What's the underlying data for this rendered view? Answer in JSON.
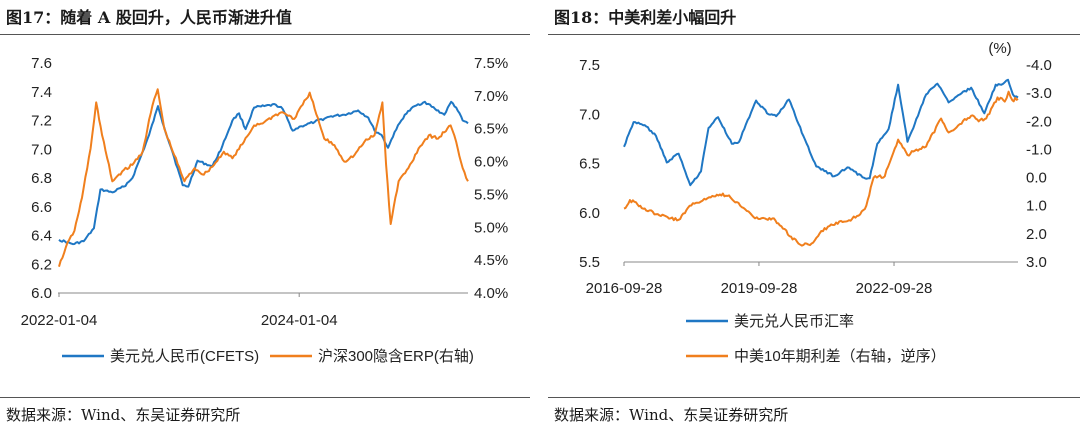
{
  "panels": [
    {
      "title": "图17：随着 A 股回升，人民币渐进升值",
      "source": "数据来源：Wind、东吴证券研究所"
    },
    {
      "title": "图18：中美利差小幅回升",
      "source": "数据来源：Wind、东吴证券研究所"
    }
  ],
  "chart_data": [
    {
      "type": "line",
      "title": "",
      "xlabel": "",
      "ylabel": "",
      "x_ticks": [
        "2022-01-04",
        "2024-01-04"
      ],
      "y_left_ticks": [
        "6.0",
        "6.2",
        "6.4",
        "6.6",
        "6.8",
        "7.0",
        "7.2",
        "7.4",
        "7.6"
      ],
      "y_right_ticks": [
        "4.0%",
        "4.5%",
        "5.0%",
        "5.5%",
        "6.0%",
        "6.5%",
        "7.0%",
        "7.5%"
      ],
      "y_left_range": [
        6.0,
        7.6
      ],
      "y_right_range": [
        4.0,
        7.5
      ],
      "x_range": [
        "2022-01-01",
        "2025-05-31"
      ],
      "legend_position": "bottom",
      "series": [
        {
          "name": "美元兑人民币(CFETS)",
          "axis": "left",
          "color": "#1f77c4",
          "points": [
            [
              "2022-01-04",
              6.37
            ],
            [
              "2022-02-15",
              6.34
            ],
            [
              "2022-03-20",
              6.36
            ],
            [
              "2022-04-20",
              6.45
            ],
            [
              "2022-05-10",
              6.72
            ],
            [
              "2022-06-15",
              6.7
            ],
            [
              "2022-07-20",
              6.74
            ],
            [
              "2022-08-15",
              6.8
            ],
            [
              "2022-09-10",
              6.95
            ],
            [
              "2022-10-05",
              7.1
            ],
            [
              "2022-11-01",
              7.3
            ],
            [
              "2022-11-20",
              7.15
            ],
            [
              "2022-12-15",
              6.98
            ],
            [
              "2023-01-15",
              6.75
            ],
            [
              "2023-02-01",
              6.74
            ],
            [
              "2023-03-01",
              6.92
            ],
            [
              "2023-04-15",
              6.88
            ],
            [
              "2023-05-15",
              7.02
            ],
            [
              "2023-06-15",
              7.2
            ],
            [
              "2023-07-05",
              7.25
            ],
            [
              "2023-07-25",
              7.14
            ],
            [
              "2023-08-20",
              7.29
            ],
            [
              "2023-09-20",
              7.3
            ],
            [
              "2023-10-25",
              7.31
            ],
            [
              "2023-11-15",
              7.28
            ],
            [
              "2023-12-15",
              7.13
            ],
            [
              "2024-01-10",
              7.16
            ],
            [
              "2024-02-20",
              7.19
            ],
            [
              "2024-04-10",
              7.23
            ],
            [
              "2024-05-20",
              7.24
            ],
            [
              "2024-07-01",
              7.27
            ],
            [
              "2024-08-01",
              7.22
            ],
            [
              "2024-08-20",
              7.13
            ],
            [
              "2024-09-10",
              7.1
            ],
            [
              "2024-09-30",
              7.01
            ],
            [
              "2024-10-20",
              7.12
            ],
            [
              "2024-11-20",
              7.24
            ],
            [
              "2024-12-20",
              7.3
            ],
            [
              "2025-01-20",
              7.33
            ],
            [
              "2025-02-20",
              7.28
            ],
            [
              "2025-03-20",
              7.24
            ],
            [
              "2025-04-10",
              7.33
            ],
            [
              "2025-04-25",
              7.29
            ],
            [
              "2025-05-15",
              7.2
            ],
            [
              "2025-05-31",
              7.18
            ]
          ]
        },
        {
          "name": "沪深300隐含ERP(右轴)",
          "axis": "right",
          "color": "#f07f1d",
          "points": [
            [
              "2022-01-04",
              4.4
            ],
            [
              "2022-01-25",
              4.7
            ],
            [
              "2022-02-20",
              4.95
            ],
            [
              "2022-03-15",
              5.45
            ],
            [
              "2022-04-10",
              6.2
            ],
            [
              "2022-04-27",
              6.9
            ],
            [
              "2022-05-15",
              6.4
            ],
            [
              "2022-06-15",
              5.7
            ],
            [
              "2022-07-15",
              5.85
            ],
            [
              "2022-08-15",
              5.95
            ],
            [
              "2022-09-15",
              6.15
            ],
            [
              "2022-10-15",
              6.85
            ],
            [
              "2022-10-31",
              7.1
            ],
            [
              "2022-11-20",
              6.5
            ],
            [
              "2022-12-20",
              6.1
            ],
            [
              "2023-01-20",
              5.7
            ],
            [
              "2023-02-20",
              5.9
            ],
            [
              "2023-03-20",
              5.8
            ],
            [
              "2023-04-20",
              5.95
            ],
            [
              "2023-05-20",
              6.15
            ],
            [
              "2023-06-15",
              6.05
            ],
            [
              "2023-07-20",
              6.3
            ],
            [
              "2023-08-20",
              6.55
            ],
            [
              "2023-09-20",
              6.6
            ],
            [
              "2023-10-20",
              6.7
            ],
            [
              "2023-11-15",
              6.75
            ],
            [
              "2023-12-20",
              6.65
            ],
            [
              "2024-01-25",
              6.95
            ],
            [
              "2024-02-05",
              7.05
            ],
            [
              "2024-02-20",
              6.8
            ],
            [
              "2024-03-20",
              6.35
            ],
            [
              "2024-04-20",
              6.25
            ],
            [
              "2024-05-20",
              6.0
            ],
            [
              "2024-06-20",
              6.1
            ],
            [
              "2024-07-20",
              6.3
            ],
            [
              "2024-08-20",
              6.4
            ],
            [
              "2024-09-13",
              6.9
            ],
            [
              "2024-09-24",
              5.95
            ],
            [
              "2024-10-08",
              5.05
            ],
            [
              "2024-11-01",
              5.7
            ],
            [
              "2024-12-01",
              5.9
            ],
            [
              "2025-01-01",
              6.2
            ],
            [
              "2025-02-01",
              6.4
            ],
            [
              "2025-03-01",
              6.35
            ],
            [
              "2025-04-08",
              6.55
            ],
            [
              "2025-04-25",
              6.3
            ],
            [
              "2025-05-15",
              5.9
            ],
            [
              "2025-05-31",
              5.7
            ]
          ]
        }
      ]
    },
    {
      "type": "line",
      "title": "",
      "xlabel": "",
      "ylabel": "",
      "unit_label": "(%)",
      "x_ticks": [
        "2016-09-28",
        "2019-09-28",
        "2022-09-28"
      ],
      "y_left_ticks": [
        "5.5",
        "6.0",
        "6.5",
        "7.0",
        "7.5"
      ],
      "y_right_ticks": [
        "-4.0",
        "-3.0",
        "-2.0",
        "-1.0",
        "0.0",
        "1.0",
        "2.0",
        "3.0"
      ],
      "y_left_range": [
        5.5,
        7.5
      ],
      "y_right_range": [
        -4.0,
        3.0
      ],
      "y_right_inverted": true,
      "x_range": [
        "2016-09-28",
        "2025-06-30"
      ],
      "legend_position": "bottom",
      "series": [
        {
          "name": "美元兑人民币汇率",
          "axis": "left",
          "color": "#1f77c4",
          "points": [
            [
              "2016-09-28",
              6.67
            ],
            [
              "2016-12-15",
              6.92
            ],
            [
              "2017-03-15",
              6.89
            ],
            [
              "2017-06-15",
              6.78
            ],
            [
              "2017-09-10",
              6.51
            ],
            [
              "2017-12-15",
              6.6
            ],
            [
              "2018-03-20",
              6.28
            ],
            [
              "2018-06-15",
              6.42
            ],
            [
              "2018-08-15",
              6.86
            ],
            [
              "2018-10-31",
              6.97
            ],
            [
              "2019-02-20",
              6.7
            ],
            [
              "2019-04-20",
              6.72
            ],
            [
              "2019-06-15",
              6.9
            ],
            [
              "2019-09-05",
              7.14
            ],
            [
              "2019-12-15",
              7.0
            ],
            [
              "2020-02-15",
              6.98
            ],
            [
              "2020-05-28",
              7.15
            ],
            [
              "2020-08-15",
              6.9
            ],
            [
              "2021-01-05",
              6.47
            ],
            [
              "2021-05-30",
              6.37
            ],
            [
              "2021-09-15",
              6.46
            ],
            [
              "2022-01-15",
              6.36
            ],
            [
              "2022-03-15",
              6.35
            ],
            [
              "2022-05-15",
              6.7
            ],
            [
              "2022-08-15",
              6.85
            ],
            [
              "2022-10-31",
              7.3
            ],
            [
              "2023-01-15",
              6.72
            ],
            [
              "2023-03-15",
              6.9
            ],
            [
              "2023-06-15",
              7.2
            ],
            [
              "2023-09-15",
              7.31
            ],
            [
              "2023-12-15",
              7.12
            ],
            [
              "2024-03-15",
              7.2
            ],
            [
              "2024-06-15",
              7.27
            ],
            [
              "2024-09-30",
              7.01
            ],
            [
              "2024-12-31",
              7.3
            ],
            [
              "2025-02-15",
              7.3
            ],
            [
              "2025-04-10",
              7.35
            ],
            [
              "2025-05-20",
              7.2
            ],
            [
              "2025-06-30",
              7.17
            ]
          ]
        },
        {
          "name": "中美10年期利差（右轴，逆序）",
          "axis": "right",
          "color": "#f07f1d",
          "points": [
            [
              "2016-09-28",
              1.1
            ],
            [
              "2016-11-15",
              0.8
            ],
            [
              "2017-01-15",
              0.95
            ],
            [
              "2017-03-15",
              1.1
            ],
            [
              "2017-06-15",
              1.3
            ],
            [
              "2017-09-15",
              1.4
            ],
            [
              "2017-12-15",
              1.5
            ],
            [
              "2018-03-15",
              1.0
            ],
            [
              "2018-06-15",
              0.85
            ],
            [
              "2018-09-15",
              0.65
            ],
            [
              "2018-11-15",
              0.6
            ],
            [
              "2019-01-15",
              0.65
            ],
            [
              "2019-04-15",
              0.9
            ],
            [
              "2019-08-15",
              1.4
            ],
            [
              "2019-11-15",
              1.45
            ],
            [
              "2020-01-15",
              1.45
            ],
            [
              "2020-03-15",
              1.7
            ],
            [
              "2020-06-15",
              2.1
            ],
            [
              "2020-08-15",
              2.35
            ],
            [
              "2020-11-15",
              2.4
            ],
            [
              "2021-02-15",
              1.9
            ],
            [
              "2021-06-15",
              1.6
            ],
            [
              "2021-09-15",
              1.55
            ],
            [
              "2021-12-15",
              1.35
            ],
            [
              "2022-02-15",
              1.0
            ],
            [
              "2022-04-15",
              0.0
            ],
            [
              "2022-07-15",
              -0.05
            ],
            [
              "2022-10-31",
              -1.35
            ],
            [
              "2023-01-15",
              -0.8
            ],
            [
              "2023-03-15",
              -0.95
            ],
            [
              "2023-06-15",
              -1.1
            ],
            [
              "2023-10-15",
              -2.1
            ],
            [
              "2023-12-15",
              -1.6
            ],
            [
              "2024-03-15",
              -1.9
            ],
            [
              "2024-06-15",
              -2.2
            ],
            [
              "2024-08-15",
              -2.0
            ],
            [
              "2024-10-15",
              -2.1
            ],
            [
              "2025-01-15",
              -2.85
            ],
            [
              "2025-03-15",
              -2.7
            ],
            [
              "2025-04-15",
              -3.05
            ],
            [
              "2025-05-15",
              -2.75
            ],
            [
              "2025-06-30",
              -2.8
            ]
          ]
        }
      ]
    }
  ]
}
